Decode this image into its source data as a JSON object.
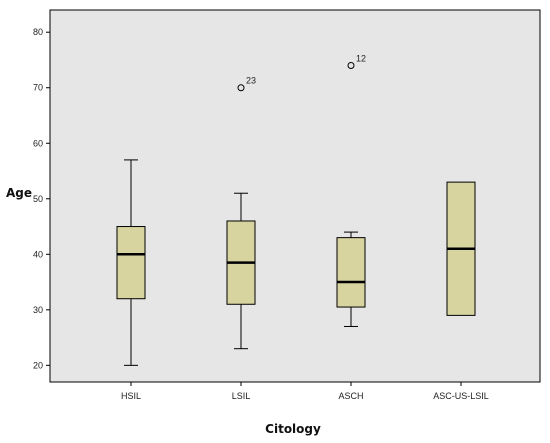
{
  "chart_data": {
    "type": "boxplot",
    "xlabel": "Citology",
    "ylabel": "Age",
    "ylim": [
      17,
      84
    ],
    "yticks": [
      20,
      30,
      40,
      50,
      60,
      70,
      80
    ],
    "grid": false,
    "colors": {
      "plot_background": "#e6e6e6",
      "box_fill": "#d8d4a0",
      "stroke": "#000000"
    },
    "categories": [
      "HSIL",
      "LSIL",
      "ASCH",
      "ASC-US-LSIL"
    ],
    "boxes": [
      {
        "category": "HSIL",
        "whisker_low": 20,
        "q1": 32,
        "median": 40,
        "q3": 45,
        "whisker_high": 57,
        "outliers": []
      },
      {
        "category": "LSIL",
        "whisker_low": 23,
        "q1": 31,
        "median": 38.5,
        "q3": 46,
        "whisker_high": 51,
        "outliers": [
          {
            "value": 70,
            "label": "23"
          }
        ]
      },
      {
        "category": "ASCH",
        "whisker_low": 27,
        "q1": 30.5,
        "median": 35,
        "q3": 43,
        "whisker_high": 44,
        "outliers": [
          {
            "value": 74,
            "label": "12"
          }
        ]
      },
      {
        "category": "ASC-US-LSIL",
        "whisker_low": 29,
        "q1": 29,
        "median": 41,
        "q3": 53,
        "whisker_high": 53,
        "outliers": []
      }
    ]
  }
}
